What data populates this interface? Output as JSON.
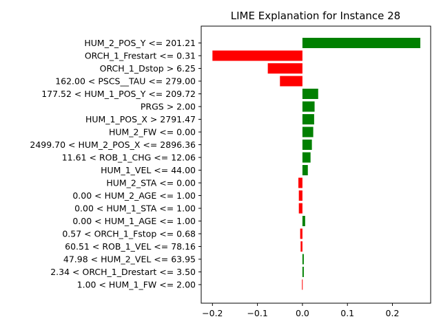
{
  "chart_data": {
    "type": "bar",
    "orientation": "horizontal",
    "title": "LIME Explanation for Instance 28",
    "xlabel": "",
    "ylabel": "",
    "xlim": [
      -0.225,
      0.285
    ],
    "xticks": [
      -0.2,
      -0.1,
      0.0,
      0.1,
      0.2
    ],
    "xtick_labels": [
      "−0.2",
      "−0.1",
      "0.0",
      "0.1",
      "0.2"
    ],
    "grid": false,
    "colors": {
      "positive": "#008000",
      "negative": "#ff0000"
    },
    "categories": [
      "HUM_2_POS_Y <= 201.21",
      "ORCH_1_Frestart <= 0.31",
      "ORCH_1_Dstop > 6.25",
      "162.00 < PSCS__TAU <= 279.00",
      "177.52 < HUM_1_POS_Y <= 209.72",
      "PRGS > 2.00",
      "HUM_1_POS_X > 2791.47",
      "HUM_2_FW <= 0.00",
      "2499.70 < HUM_2_POS_X <= 2896.36",
      "11.61 < ROB_1_CHG <= 12.06",
      "HUM_1_VEL <= 44.00",
      "HUM_2_STA <= 0.00",
      "0.00 < HUM_2_AGE <= 1.00",
      "0.00 < HUM_1_STA <= 1.00",
      "0.00 < HUM_1_AGE <= 1.00",
      "0.57 < ORCH_1_Fstop <= 0.68",
      "60.51 < ROB_1_VEL <= 78.16",
      "47.98 < HUM_2_VEL <= 63.95",
      "2.34 < ORCH_1_Drestart <= 3.50",
      "1.00 < HUM_1_FW <= 2.00"
    ],
    "values": [
      0.262,
      -0.2,
      -0.077,
      -0.05,
      0.035,
      0.027,
      0.026,
      0.024,
      0.021,
      0.018,
      0.012,
      -0.009,
      -0.008,
      -0.008,
      0.006,
      -0.005,
      -0.004,
      0.003,
      0.003,
      -0.001
    ]
  }
}
